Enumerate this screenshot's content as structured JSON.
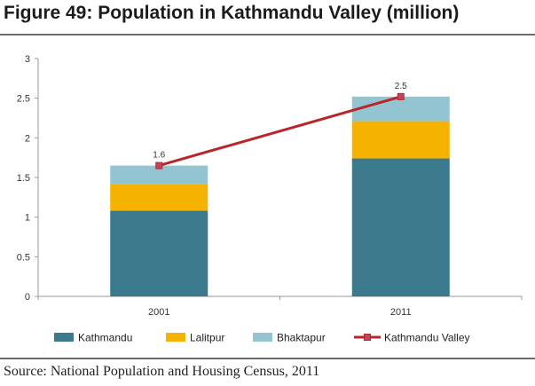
{
  "figure": {
    "title": "Figure 49: Population in Kathmandu Valley (million)",
    "source": "Source: National Population and Housing Census, 2011"
  },
  "chart_data": {
    "type": "bar",
    "stacked": true,
    "title": "Figure 49: Population in Kathmandu Valley (million)",
    "xlabel": "",
    "ylabel": "",
    "categories": [
      "2001",
      "2011"
    ],
    "ylim": [
      0,
      3
    ],
    "yticks": [
      0,
      0.5,
      1,
      1.5,
      2,
      2.5,
      3
    ],
    "ytick_labels": [
      "0",
      "0.5",
      "1",
      "1.5",
      "2",
      "2.5",
      "3"
    ],
    "grid": false,
    "legend_position": "bottom",
    "series": [
      {
        "name": "Kathmandu",
        "kind": "bar",
        "color": "#3a7a8c",
        "values": [
          1.08,
          1.74
        ]
      },
      {
        "name": "Lalitpur",
        "kind": "bar",
        "color": "#f5b300",
        "values": [
          0.34,
          0.47
        ]
      },
      {
        "name": "Bhaktapur",
        "kind": "bar",
        "color": "#93c4d2",
        "values": [
          0.23,
          0.31
        ]
      },
      {
        "name": "Kathmandu Valley",
        "kind": "line",
        "color": "#b8262b",
        "values": [
          1.65,
          2.52
        ],
        "labels": [
          "1.6",
          "2.5"
        ]
      }
    ]
  }
}
